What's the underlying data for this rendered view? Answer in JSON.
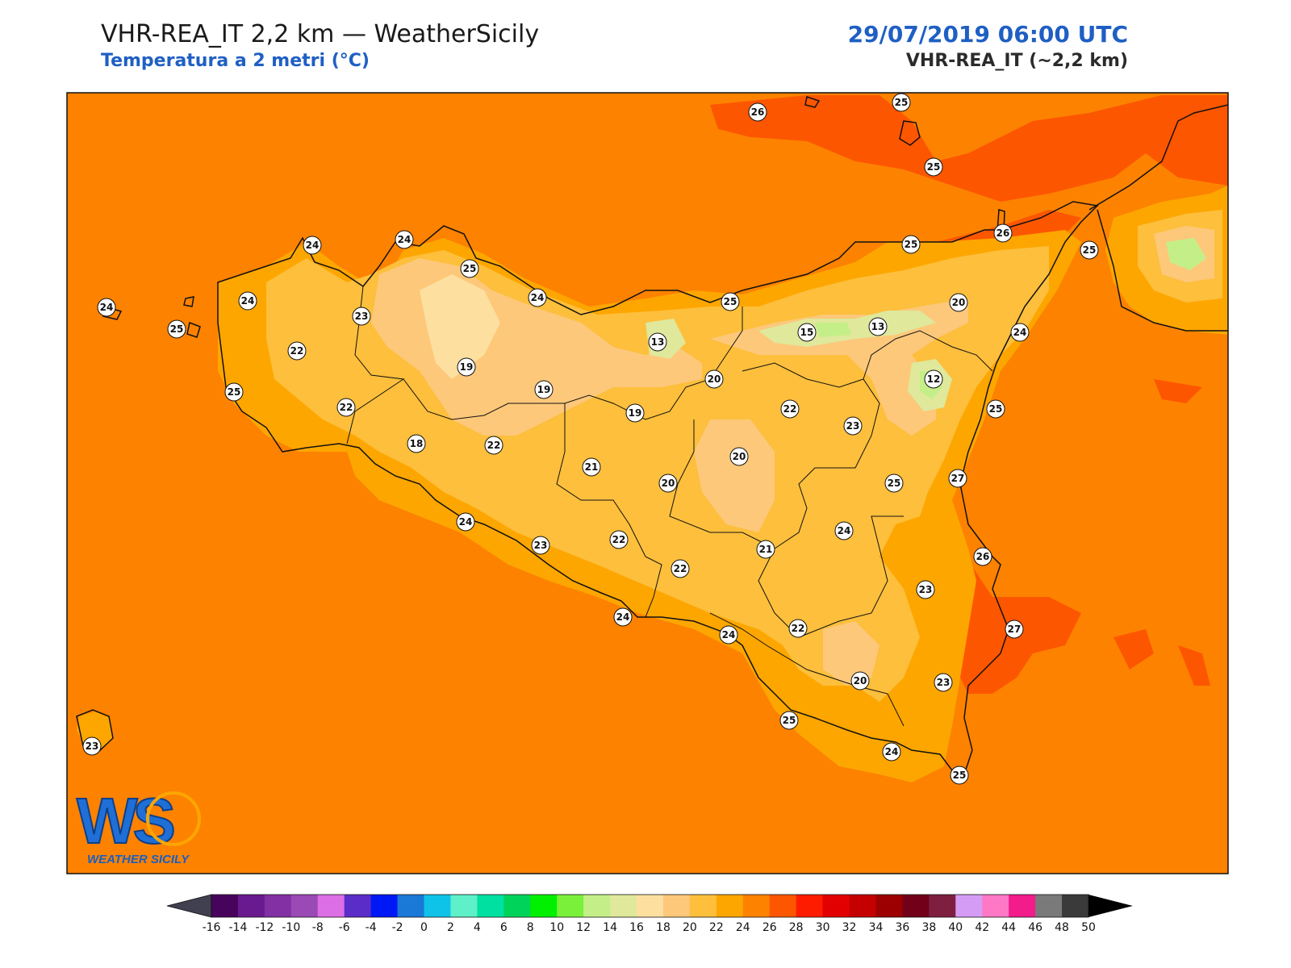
{
  "header": {
    "title": "VHR-REA_IT 2,2 km — WeatherSicily",
    "subtitle": "Temperatura a 2 metri (°C)",
    "datetime": "29/07/2019 06:00 UTC",
    "model": "VHR-REA_IT (~2,2 km)"
  },
  "logo": {
    "letters": "WS",
    "name": "WEATHER SICILY"
  },
  "colorbar": {
    "ticks": [
      "-16",
      "-14",
      "-12",
      "-10",
      "-8",
      "-6",
      "-4",
      "-2",
      "0",
      "2",
      "4",
      "6",
      "8",
      "10",
      "12",
      "14",
      "16",
      "18",
      "20",
      "22",
      "24",
      "26",
      "28",
      "30",
      "32",
      "34",
      "36",
      "38",
      "40",
      "42",
      "44",
      "46",
      "48",
      "50"
    ],
    "colors": [
      "#48045c",
      "#6a1a8f",
      "#8230a3",
      "#9a4ab5",
      "#dc6ee6",
      "#5b2dc8",
      "#0018f5",
      "#1a78d6",
      "#0fc3e8",
      "#5ef0c8",
      "#00e0a0",
      "#00d35a",
      "#00f000",
      "#7af03a",
      "#c4ef88",
      "#dfe89b",
      "#fde0a0",
      "#fdc87a",
      "#fdbf3c",
      "#fda600",
      "#fd8200",
      "#fd5600",
      "#fd1c00",
      "#e30000",
      "#c40000",
      "#9c0000",
      "#720018",
      "#7e1f40",
      "#d59cf5",
      "#ff78c6",
      "#f21c8a",
      "#7a7a7a",
      "#3a3a3a"
    ],
    "under_color": "#404050",
    "over_color": "#000000"
  },
  "stations": [
    {
      "label": "26"
    },
    {
      "label": "25"
    },
    {
      "label": "25"
    },
    {
      "label": "26"
    },
    {
      "label": "25"
    },
    {
      "label": "25"
    },
    {
      "label": "24"
    },
    {
      "label": "24"
    },
    {
      "label": "25"
    },
    {
      "label": "24"
    },
    {
      "label": "24"
    },
    {
      "label": "25"
    },
    {
      "label": "23"
    },
    {
      "label": "24"
    },
    {
      "label": "25"
    },
    {
      "label": "20"
    },
    {
      "label": "22"
    },
    {
      "label": "13"
    },
    {
      "label": "15"
    },
    {
      "label": "13"
    },
    {
      "label": "24"
    },
    {
      "label": "19"
    },
    {
      "label": "19"
    },
    {
      "label": "20"
    },
    {
      "label": "12"
    },
    {
      "label": "25"
    },
    {
      "label": "22"
    },
    {
      "label": "19"
    },
    {
      "label": "22"
    },
    {
      "label": "23"
    },
    {
      "label": "25"
    },
    {
      "label": "18"
    },
    {
      "label": "22"
    },
    {
      "label": "21"
    },
    {
      "label": "20"
    },
    {
      "label": "20"
    },
    {
      "label": "25"
    },
    {
      "label": "27"
    },
    {
      "label": "24"
    },
    {
      "label": "24"
    },
    {
      "label": "23"
    },
    {
      "label": "22"
    },
    {
      "label": "21"
    },
    {
      "label": "26"
    },
    {
      "label": "22"
    },
    {
      "label": "23"
    },
    {
      "label": "24"
    },
    {
      "label": "24"
    },
    {
      "label": "22"
    },
    {
      "label": "27"
    },
    {
      "label": "20"
    },
    {
      "label": "23"
    },
    {
      "label": "25"
    },
    {
      "label": "24"
    },
    {
      "label": "25"
    },
    {
      "label": "23"
    }
  ]
}
